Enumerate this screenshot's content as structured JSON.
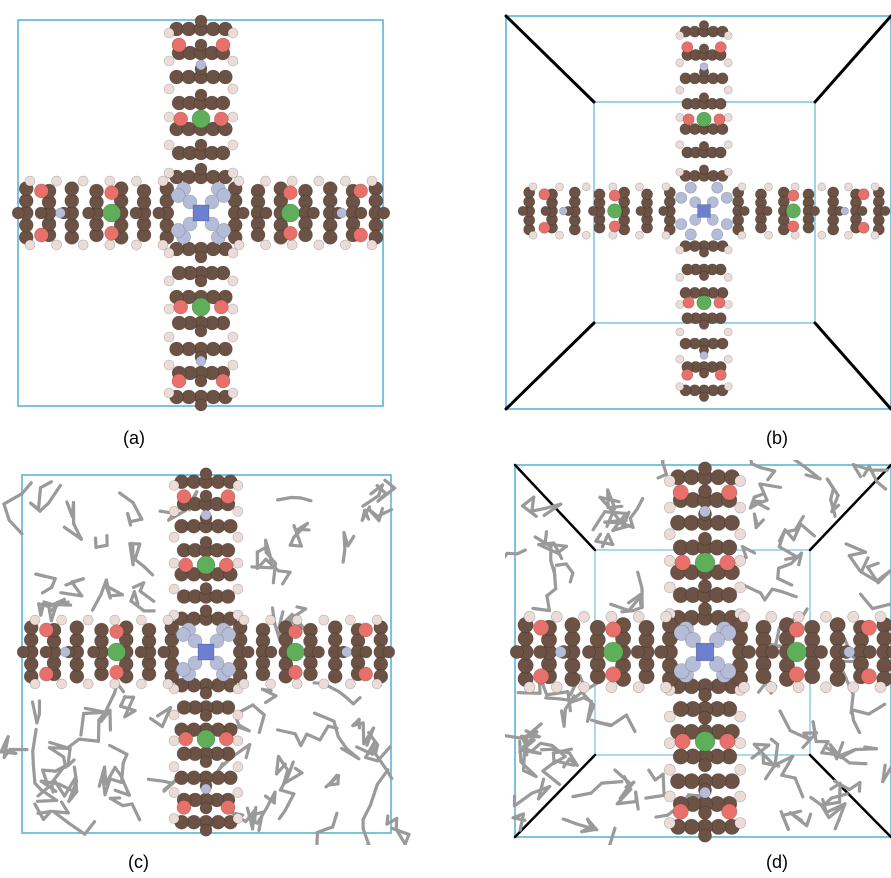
{
  "panels": [
    {
      "id": "a",
      "label": "(a)"
    },
    {
      "id": "b",
      "label": "(b)"
    },
    {
      "id": "c",
      "label": "(c)"
    },
    {
      "id": "d",
      "label": "(d)"
    }
  ],
  "colors": {
    "carbon": "#6b5244",
    "oxygen": "#e8706a",
    "nitrogen": "#b4bcd8",
    "hydrogen": "#ecdcd8",
    "boron": "#5eae5a",
    "metal_center": "#6d7fd0",
    "box_edge": "#5bb6d6",
    "box_black": "#000000",
    "solvent": "#9a9a9a"
  }
}
